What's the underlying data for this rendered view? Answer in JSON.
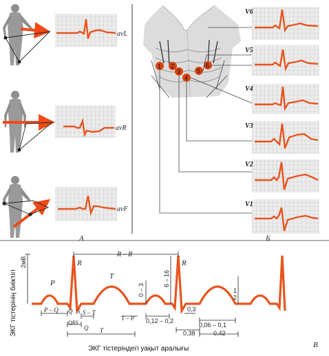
{
  "limb_leads": [
    "avL",
    "avR",
    "avF"
  ],
  "chest_leads": [
    "V6",
    "V5",
    "V4",
    "V3",
    "V2",
    "V1"
  ],
  "electrode_numbers": [
    "1",
    "2",
    "3",
    "4",
    "5",
    "6"
  ],
  "panel_labels": {
    "a": "А",
    "b": "Б",
    "c": "В"
  },
  "waves": {
    "P": "P",
    "Q": "Q",
    "R": "R",
    "S": "S",
    "T": "T",
    "R2": "R"
  },
  "intervals": {
    "rr": "R – R",
    "pq": "P – Q",
    "qs": "Q  S",
    "s_t": "S – T",
    "qrs": "QRS",
    "q": "Q",
    "t": "T",
    "tp": "T – P",
    "range1": "0,12 – 0,2",
    "v03": "0,3",
    "range2": "0,06 – 0,1",
    "v038": "0,38",
    "range3": "0,42"
  },
  "amplitudes": {
    "mv": "2мВ",
    "r_amp": "6 – 16",
    "t_amp": "0 – 3",
    "t_small": "1",
    "t_small2": "2"
  },
  "axis": {
    "y_label": "ЭКГ тістерінің биіктігі",
    "x_label": "ЭКГ тістеріндегі уақыт аралығы"
  },
  "colors": {
    "grid": "#b8b8b8",
    "trace": "#e8541d",
    "arrow": "#ee4a17",
    "electrode": "#d94412",
    "body": "#9a9a9a"
  }
}
